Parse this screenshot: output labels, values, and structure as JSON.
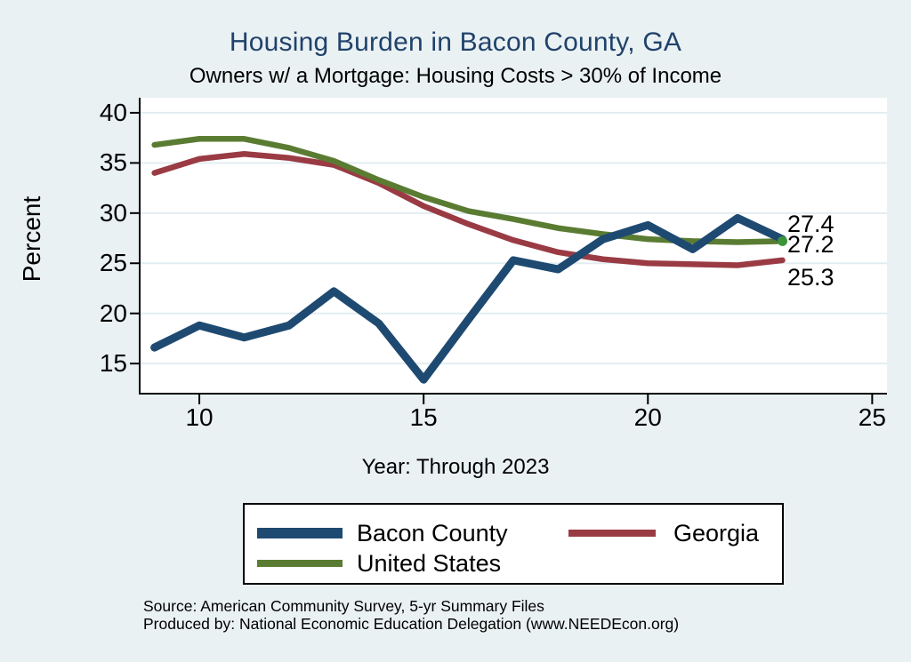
{
  "title": "Housing Burden in Bacon County, GA",
  "subtitle": "Owners w/ a Mortgage: Housing Costs > 30% of Income",
  "x_axis_label": "Year: Through 2023",
  "y_axis_label": "Percent",
  "source_line1": "Source: American Community Survey, 5-yr Summary Files",
  "source_line2": "Produced by: National Economic Education Delegation (www.NEEDEcon.org)",
  "colors": {
    "background": "#eaf1f3",
    "plot_background": "#ffffff",
    "gridline": "#e2edf1",
    "axis": "#000000",
    "title": "#20426b",
    "end_marker": "#3c9438"
  },
  "chart_data": {
    "type": "line",
    "x": [
      9,
      10,
      11,
      12,
      13,
      14,
      15,
      16,
      17,
      18,
      19,
      20,
      21,
      22,
      23
    ],
    "x_meaning": "Year (2009-2023)",
    "series": [
      {
        "name": "Bacon County",
        "color": "#1e4a72",
        "values": [
          16.6,
          18.8,
          17.6,
          18.8,
          22.2,
          19.0,
          13.4,
          19.4,
          25.3,
          24.4,
          27.4,
          28.8,
          26.4,
          29.5,
          27.4
        ],
        "end_label": "27.4"
      },
      {
        "name": "Georgia",
        "color": "#9a3b44",
        "values": [
          34.0,
          35.4,
          35.9,
          35.5,
          34.8,
          33.0,
          30.7,
          28.9,
          27.3,
          26.1,
          25.4,
          25.0,
          24.9,
          24.8,
          25.3
        ],
        "end_label": "25.3"
      },
      {
        "name": "United States",
        "color": "#5a7c32",
        "values": [
          36.8,
          37.4,
          37.4,
          36.5,
          35.2,
          33.3,
          31.6,
          30.2,
          29.4,
          28.5,
          27.9,
          27.4,
          27.2,
          27.1,
          27.2
        ],
        "end_label": "27.2",
        "end_marker": true
      }
    ],
    "x_ticks": [
      10,
      15,
      20,
      25
    ],
    "y_ticks": [
      15,
      20,
      25,
      30,
      35,
      40
    ],
    "xlim": [
      8.67,
      25.33
    ],
    "ylim": [
      12,
      41.5
    ],
    "grid": "horizontal",
    "legend_position": "bottom",
    "title": "Housing Burden in Bacon County, GA",
    "xlabel": "Year: Through 2023",
    "ylabel": "Percent"
  },
  "legend": {
    "items": [
      {
        "label": "Bacon County"
      },
      {
        "label": "Georgia"
      },
      {
        "label": "United States"
      }
    ]
  }
}
